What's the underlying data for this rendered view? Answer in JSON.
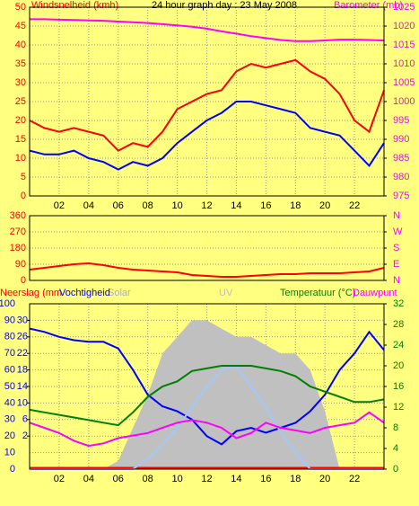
{
  "chart_data": [
    {
      "type": "line",
      "title": "24 hour graph day : 23 May 2008",
      "y_label": "Windsnelheid (kmh)",
      "y2_label": "Barometer (mb)",
      "x": [
        0,
        1,
        2,
        3,
        4,
        5,
        6,
        7,
        8,
        9,
        10,
        11,
        12,
        13,
        14,
        15,
        16,
        17,
        18,
        19,
        20,
        21,
        22,
        23,
        24
      ],
      "xlim": [
        0,
        24
      ],
      "xticks": [
        {
          "value": 2,
          "label": "02"
        },
        {
          "value": 4,
          "label": "04"
        },
        {
          "value": 6,
          "label": "06"
        },
        {
          "value": 8,
          "label": "08"
        },
        10,
        12,
        14,
        16,
        18,
        20,
        22
      ],
      "ylim": [
        0,
        50
      ],
      "yticks": [
        0,
        5,
        10,
        15,
        20,
        25,
        30,
        35,
        40,
        45,
        50
      ],
      "y2lim": [
        975,
        1025
      ],
      "y2ticks": [
        975,
        980,
        985,
        990,
        995,
        1000,
        1005,
        1010,
        1015,
        1020,
        1025
      ],
      "grid": true,
      "series": [
        {
          "color": "#ff0000",
          "values": [
            20,
            18,
            17,
            18,
            17,
            16,
            12,
            14,
            13,
            17,
            23,
            25,
            27,
            28,
            33,
            35,
            34,
            35,
            36,
            33,
            31,
            27,
            20,
            17,
            28
          ]
        },
        {
          "color": "#0000ff",
          "values": [
            12,
            11,
            11,
            12,
            10,
            9,
            7,
            9,
            8,
            10,
            14,
            17,
            20,
            22,
            25,
            25,
            24,
            23,
            22,
            18,
            17,
            16,
            12,
            8,
            14
          ]
        },
        {
          "color": "#ff00ff",
          "axis": "y2",
          "values": [
            1021.8,
            1021.8,
            1021.7,
            1021.6,
            1021.5,
            1021.4,
            1021.2,
            1021,
            1020.8,
            1020.5,
            1020.2,
            1019.8,
            1019.3,
            1018.6,
            1018,
            1017.3,
            1016.8,
            1016.3,
            1016,
            1016,
            1016.2,
            1016.4,
            1016.4,
            1016.3,
            1016.2
          ]
        }
      ]
    },
    {
      "type": "line",
      "x": [
        0,
        1,
        2,
        3,
        4,
        5,
        6,
        7,
        8,
        9,
        10,
        11,
        12,
        13,
        14,
        15,
        16,
        17,
        18,
        19,
        20,
        21,
        22,
        23,
        24
      ],
      "xlim": [
        0,
        24
      ],
      "ylim": [
        0,
        360
      ],
      "yticks": [
        0,
        90,
        180,
        270,
        360
      ],
      "y2lim": [
        0,
        360
      ],
      "y2ticks": [
        {
          "value": 0,
          "label": "N"
        },
        {
          "value": 90,
          "label": "E"
        },
        {
          "value": 180,
          "label": "S"
        },
        {
          "value": 270,
          "label": "W"
        },
        {
          "value": 360,
          "label": "N"
        }
      ],
      "grid": true,
      "series": [
        {
          "color": "#ff0000",
          "values": [
            60,
            70,
            80,
            90,
            95,
            85,
            70,
            60,
            55,
            50,
            45,
            30,
            25,
            20,
            20,
            25,
            30,
            35,
            35,
            40,
            40,
            40,
            45,
            50,
            70
          ]
        }
      ]
    },
    {
      "type": "line",
      "x": [
        0,
        1,
        2,
        3,
        4,
        5,
        6,
        7,
        8,
        9,
        10,
        11,
        12,
        13,
        14,
        15,
        16,
        17,
        18,
        19,
        20,
        21,
        22,
        23,
        24
      ],
      "xlim": [
        0,
        24
      ],
      "xticks": [
        {
          "value": 2,
          "label": "02"
        },
        {
          "value": 4,
          "label": "04"
        },
        {
          "value": 6,
          "label": "06"
        },
        {
          "value": 8,
          "label": "08"
        },
        10,
        12,
        14,
        16,
        18,
        20,
        22
      ],
      "ylim": [
        0,
        100
      ],
      "yticks": [
        0,
        10,
        20,
        30,
        40,
        50,
        60,
        70,
        80,
        90,
        100
      ],
      "y2lim": [
        0,
        32
      ],
      "y2ticks": [
        0,
        4,
        8,
        12,
        16,
        20,
        24,
        28,
        32
      ],
      "y3lim": [
        -6,
        34
      ],
      "y3ticks": [
        2,
        6,
        10,
        14,
        18,
        22,
        26,
        30
      ],
      "y4lim": [
        0,
        1000
      ],
      "y5lim": [
        0,
        8
      ],
      "grid": true,
      "series": [
        {
          "name": "Neerslag (mm",
          "color": "#ff0000",
          "axis": "y3",
          "style": "bar",
          "values": [
            0,
            0,
            0,
            0,
            0,
            0,
            0,
            0,
            0,
            0,
            0,
            0,
            0,
            0,
            0,
            0,
            0,
            0,
            0,
            0,
            0,
            0,
            0,
            0,
            0
          ]
        },
        {
          "name": "Vochtigheid",
          "color": "#0000ff",
          "values": [
            85,
            83,
            80,
            78,
            77,
            77,
            73,
            60,
            45,
            38,
            35,
            30,
            20,
            15,
            23,
            25,
            22,
            25,
            28,
            35,
            45,
            60,
            70,
            83,
            72
          ]
        },
        {
          "name": "Solar",
          "color": "#c0c0c0",
          "axis": "y4",
          "style": "area",
          "values": [
            0,
            0,
            0,
            0,
            0,
            0,
            50,
            250,
            450,
            700,
            800,
            900,
            900,
            850,
            800,
            800,
            750,
            700,
            700,
            600,
            350,
            0,
            0,
            0,
            0
          ]
        },
        {
          "name": "UV",
          "color": "#a0c8ff",
          "axis": "y5",
          "values": [
            0,
            0,
            0,
            0,
            0,
            0,
            0,
            0,
            0.5,
            1.2,
            2,
            3,
            4,
            4.8,
            5,
            4,
            3,
            1.8,
            0.8,
            0,
            0,
            0,
            0,
            0,
            0
          ]
        },
        {
          "name": "Temperatuur (°C)",
          "color": "#008000",
          "axis": "y2",
          "values": [
            11.5,
            11,
            10.5,
            10,
            9.5,
            9,
            8.5,
            11,
            14,
            16,
            17,
            19,
            19.5,
            20,
            20,
            20,
            19.5,
            19,
            18,
            16,
            15,
            14,
            13,
            13,
            13.5
          ]
        },
        {
          "name": "Dauwpunt",
          "color": "#ff00ff",
          "axis": "y2",
          "values": [
            9,
            8,
            7,
            5.5,
            4.5,
            5,
            6,
            6.5,
            7,
            8,
            9,
            9.5,
            9,
            8,
            6,
            7,
            9,
            8,
            7.5,
            7,
            8,
            8.5,
            9,
            11,
            9
          ]
        }
      ]
    }
  ]
}
